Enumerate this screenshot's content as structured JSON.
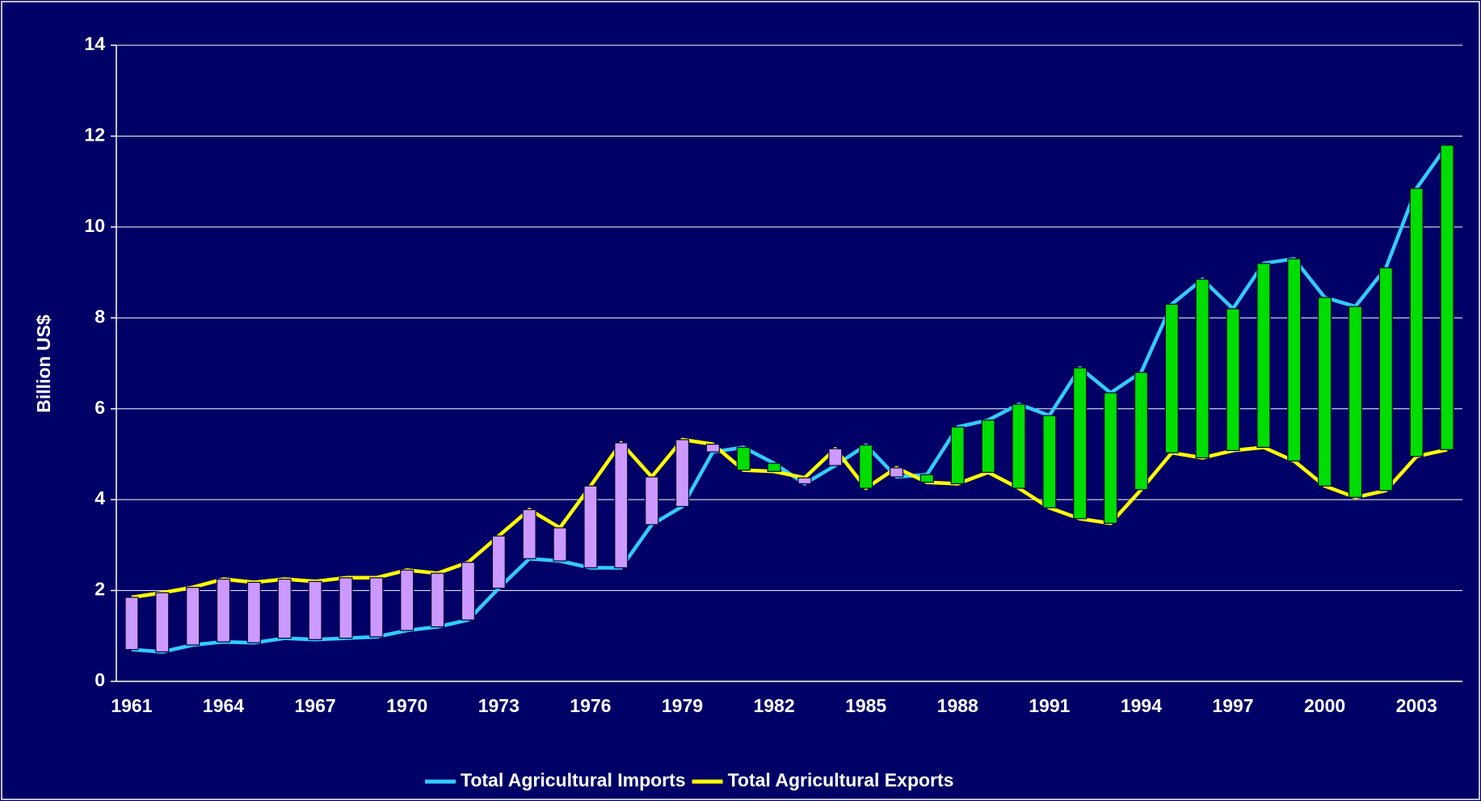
{
  "chart_data": {
    "type": "line",
    "y_label": "Billion US$",
    "categories": [
      "1961",
      null,
      null,
      "1964",
      null,
      null,
      "1967",
      null,
      null,
      "1970",
      null,
      null,
      "1973",
      null,
      null,
      "1976",
      null,
      null,
      "1979",
      null,
      null,
      "1982",
      null,
      null,
      "1985",
      null,
      null,
      "1988",
      null,
      null,
      "1991",
      null,
      null,
      "1994",
      null,
      null,
      "1997",
      null,
      null,
      "2000",
      null,
      null,
      "2003",
      null
    ],
    "series": [
      {
        "name": "Total Agricultural Imports",
        "color": "#33ccff",
        "values": [
          0.7,
          0.65,
          0.8,
          0.87,
          0.85,
          0.95,
          0.92,
          0.95,
          0.98,
          1.12,
          1.2,
          1.35,
          2.05,
          2.7,
          2.65,
          2.5,
          2.5,
          3.45,
          3.85,
          5.05,
          5.15,
          4.8,
          4.35,
          4.75,
          5.2,
          4.5,
          4.55,
          5.6,
          5.75,
          6.1,
          5.85,
          6.9,
          6.35,
          6.8,
          8.3,
          8.85,
          8.2,
          9.2,
          9.3,
          8.45,
          8.25,
          9.1,
          10.85,
          11.8
        ]
      },
      {
        "name": "Total Agricultural Exports",
        "color": "#ffff00",
        "values": [
          1.85,
          1.95,
          2.07,
          2.25,
          2.18,
          2.25,
          2.2,
          2.28,
          2.28,
          2.45,
          2.38,
          2.62,
          3.2,
          3.78,
          3.38,
          4.3,
          5.25,
          4.5,
          5.32,
          5.22,
          4.65,
          4.62,
          4.48,
          5.12,
          4.25,
          4.7,
          4.38,
          4.35,
          4.6,
          4.25,
          3.82,
          3.58,
          3.48,
          4.22,
          5.03,
          4.92,
          5.08,
          5.15,
          4.85,
          4.3,
          4.05,
          4.2,
          4.95,
          5.1
        ]
      }
    ],
    "updown_bars": {
      "up_color": "#cc99ff",
      "down_color": "#00dd00"
    },
    "ylim": [
      0,
      14
    ],
    "yticks": [
      0,
      2,
      4,
      6,
      8,
      10,
      12,
      14
    ],
    "grid": true,
    "legend": "bottom"
  }
}
